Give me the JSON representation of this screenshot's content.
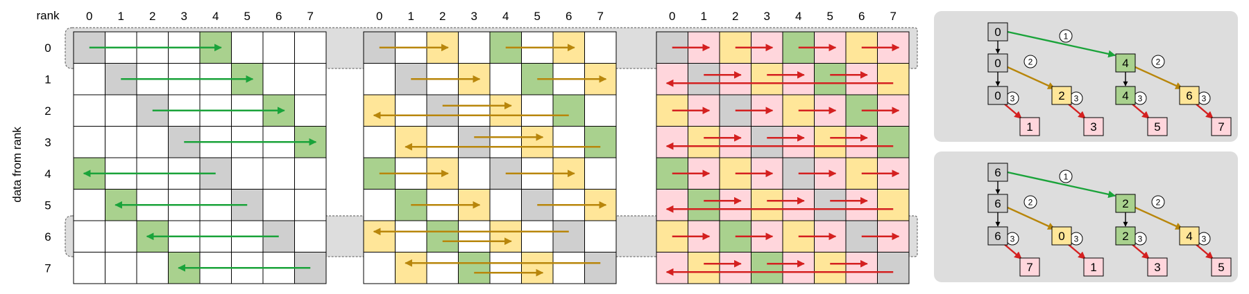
{
  "labels": {
    "rank": "rank",
    "y_axis": "data from rank",
    "col_ranks": [
      "0",
      "1",
      "2",
      "3",
      "4",
      "5",
      "6",
      "7"
    ],
    "row_ranks": [
      "0",
      "1",
      "2",
      "3",
      "4",
      "5",
      "6",
      "7"
    ]
  },
  "colors": {
    "gray": "#cfcfcf",
    "green": "#a9d18e",
    "yellow": "#ffe699",
    "pink": "#ffd6dc",
    "arrow_green": "#1aa33a",
    "arrow_orange": "#b8860b",
    "arrow_red": "#d42020",
    "panel": "#dddddd"
  },
  "grids": [
    {
      "name": "grid-step1",
      "cells": [
        "GWWWRWWW",
        "WGWWWRWW",
        "WWGWWWRW",
        "WWWGWWWR",
        "RWWWGWWW",
        "WRWWWGWW",
        "WWRWWWGW",
        "WWWRWWWG"
      ],
      "arrows": [
        {
          "row": 0,
          "from": 0,
          "to": 4,
          "c": "g"
        },
        {
          "row": 1,
          "from": 1,
          "to": 5,
          "c": "g"
        },
        {
          "row": 2,
          "from": 2,
          "to": 6,
          "c": "g"
        },
        {
          "row": 3,
          "from": 3,
          "to": 7,
          "c": "g"
        },
        {
          "row": 4,
          "from": 4,
          "to": 0,
          "c": "g"
        },
        {
          "row": 5,
          "from": 5,
          "to": 1,
          "c": "g"
        },
        {
          "row": 6,
          "from": 6,
          "to": 2,
          "c": "g"
        },
        {
          "row": 7,
          "from": 7,
          "to": 3,
          "c": "g"
        }
      ]
    },
    {
      "name": "grid-step2",
      "cells": [
        "GWYWRWYW",
        "WGWYWRWY",
        "YWGWYWRW",
        "WYWGWYWR",
        "RWYWGWYW",
        "WRWYWGWY",
        "YWRWYWGW",
        "WYWRWYWG"
      ],
      "arrows": [
        {
          "row": 0,
          "from": 0,
          "to": 2,
          "c": "o"
        },
        {
          "row": 0,
          "from": 4,
          "to": 6,
          "c": "o"
        },
        {
          "row": 1,
          "from": 1,
          "to": 3,
          "c": "o"
        },
        {
          "row": 1,
          "from": 5,
          "to": 7,
          "c": "o"
        },
        {
          "row": 2,
          "from": 2,
          "to": 4,
          "c": "o",
          "dy": -7
        },
        {
          "row": 2,
          "from": 6,
          "to": 0,
          "c": "o",
          "dy": 7
        },
        {
          "row": 3,
          "from": 3,
          "to": 5,
          "c": "o",
          "dy": -7
        },
        {
          "row": 3,
          "from": 7,
          "to": 1,
          "c": "o",
          "dy": 7
        },
        {
          "row": 4,
          "from": 4,
          "to": 6,
          "c": "o"
        },
        {
          "row": 4,
          "from": 0,
          "to": 2,
          "c": "o"
        },
        {
          "row": 5,
          "from": 5,
          "to": 7,
          "c": "o"
        },
        {
          "row": 5,
          "from": 1,
          "to": 3,
          "c": "o"
        },
        {
          "row": 6,
          "from": 6,
          "to": 0,
          "c": "o",
          "dy": -7
        },
        {
          "row": 6,
          "from": 2,
          "to": 4,
          "c": "o",
          "dy": 7
        },
        {
          "row": 7,
          "from": 7,
          "to": 1,
          "c": "o",
          "dy": -7
        },
        {
          "row": 7,
          "from": 3,
          "to": 5,
          "c": "o",
          "dy": 7
        }
      ]
    },
    {
      "name": "grid-step3",
      "cells": [
        "GPYPRPYP",
        "PGPYPRPY",
        "YPGPYPRP",
        "PYPGPYPR",
        "RPYPGPYP",
        "PRPYPGPY",
        "YPRPYPGP",
        "PYPRPYPG"
      ],
      "arrows": [
        {
          "row": 0,
          "from": 0,
          "to": 1,
          "c": "r"
        },
        {
          "row": 0,
          "from": 2,
          "to": 3,
          "c": "r"
        },
        {
          "row": 0,
          "from": 4,
          "to": 5,
          "c": "r"
        },
        {
          "row": 0,
          "from": 6,
          "to": 7,
          "c": "r"
        },
        {
          "row": 1,
          "from": 1,
          "to": 2,
          "c": "r",
          "dy": -6
        },
        {
          "row": 1,
          "from": 3,
          "to": 4,
          "c": "r",
          "dy": -6
        },
        {
          "row": 1,
          "from": 5,
          "to": 6,
          "c": "r",
          "dy": -6
        },
        {
          "row": 1,
          "from": 7,
          "to": 0,
          "c": "r",
          "dy": 6
        },
        {
          "row": 2,
          "from": 0,
          "to": 1,
          "c": "r"
        },
        {
          "row": 2,
          "from": 2,
          "to": 3,
          "c": "r"
        },
        {
          "row": 2,
          "from": 4,
          "to": 5,
          "c": "r"
        },
        {
          "row": 2,
          "from": 6,
          "to": 7,
          "c": "r"
        },
        {
          "row": 3,
          "from": 1,
          "to": 2,
          "c": "r",
          "dy": -6
        },
        {
          "row": 3,
          "from": 3,
          "to": 4,
          "c": "r",
          "dy": -6
        },
        {
          "row": 3,
          "from": 5,
          "to": 6,
          "c": "r",
          "dy": -6
        },
        {
          "row": 3,
          "from": 7,
          "to": 0,
          "c": "r",
          "dy": 6
        },
        {
          "row": 4,
          "from": 0,
          "to": 1,
          "c": "r"
        },
        {
          "row": 4,
          "from": 2,
          "to": 3,
          "c": "r"
        },
        {
          "row": 4,
          "from": 4,
          "to": 5,
          "c": "r"
        },
        {
          "row": 4,
          "from": 6,
          "to": 7,
          "c": "r"
        },
        {
          "row": 5,
          "from": 1,
          "to": 2,
          "c": "r",
          "dy": -6
        },
        {
          "row": 5,
          "from": 3,
          "to": 4,
          "c": "r",
          "dy": -6
        },
        {
          "row": 5,
          "from": 5,
          "to": 6,
          "c": "r",
          "dy": -6
        },
        {
          "row": 5,
          "from": 7,
          "to": 0,
          "c": "r",
          "dy": 6
        },
        {
          "row": 6,
          "from": 0,
          "to": 1,
          "c": "r"
        },
        {
          "row": 6,
          "from": 2,
          "to": 3,
          "c": "r"
        },
        {
          "row": 6,
          "from": 4,
          "to": 5,
          "c": "r"
        },
        {
          "row": 6,
          "from": 6,
          "to": 7,
          "c": "r"
        },
        {
          "row": 7,
          "from": 1,
          "to": 2,
          "c": "r",
          "dy": -6
        },
        {
          "row": 7,
          "from": 3,
          "to": 4,
          "c": "r",
          "dy": -6
        },
        {
          "row": 7,
          "from": 5,
          "to": 6,
          "c": "r",
          "dy": -6
        },
        {
          "row": 7,
          "from": 7,
          "to": 0,
          "c": "r",
          "dy": 6
        }
      ]
    }
  ],
  "trees": [
    {
      "name": "tree-rank0",
      "nodes": [
        {
          "id": "a",
          "label": "0",
          "fill": "G",
          "col": 0,
          "lvl": 0
        },
        {
          "id": "b",
          "label": "0",
          "fill": "G",
          "col": 0,
          "lvl": 1
        },
        {
          "id": "c",
          "label": "0",
          "fill": "G",
          "col": 0,
          "lvl": 2
        },
        {
          "id": "d",
          "label": "1",
          "fill": "P",
          "col": 1,
          "lvl": 3
        },
        {
          "id": "e",
          "label": "2",
          "fill": "Y",
          "col": 2,
          "lvl": 2
        },
        {
          "id": "f",
          "label": "3",
          "fill": "P",
          "col": 3,
          "lvl": 3
        },
        {
          "id": "g",
          "label": "4",
          "fill": "R",
          "col": 4,
          "lvl": 1
        },
        {
          "id": "h",
          "label": "4",
          "fill": "R",
          "col": 4,
          "lvl": 2
        },
        {
          "id": "i",
          "label": "5",
          "fill": "P",
          "col": 5,
          "lvl": 3
        },
        {
          "id": "j",
          "label": "6",
          "fill": "Y",
          "col": 6,
          "lvl": 2
        },
        {
          "id": "k",
          "label": "7",
          "fill": "P",
          "col": 7,
          "lvl": 3
        }
      ],
      "edges": [
        {
          "from": "a",
          "to": "b",
          "type": "down"
        },
        {
          "from": "b",
          "to": "c",
          "type": "down"
        },
        {
          "from": "g",
          "to": "h",
          "type": "down"
        },
        {
          "from": "a",
          "to": "g",
          "type": "g",
          "step": "1"
        },
        {
          "from": "b",
          "to": "e",
          "type": "o",
          "step": "2"
        },
        {
          "from": "g",
          "to": "j",
          "type": "o",
          "step": "2"
        },
        {
          "from": "c",
          "to": "d",
          "type": "r",
          "step": "3"
        },
        {
          "from": "e",
          "to": "f",
          "type": "r",
          "step": "3"
        },
        {
          "from": "h",
          "to": "i",
          "type": "r",
          "step": "3"
        },
        {
          "from": "j",
          "to": "k",
          "type": "r",
          "step": "3"
        }
      ]
    },
    {
      "name": "tree-rank6",
      "nodes": [
        {
          "id": "a",
          "label": "6",
          "fill": "G",
          "col": 0,
          "lvl": 0
        },
        {
          "id": "b",
          "label": "6",
          "fill": "G",
          "col": 0,
          "lvl": 1
        },
        {
          "id": "c",
          "label": "6",
          "fill": "G",
          "col": 0,
          "lvl": 2
        },
        {
          "id": "d",
          "label": "7",
          "fill": "P",
          "col": 1,
          "lvl": 3
        },
        {
          "id": "e",
          "label": "0",
          "fill": "Y",
          "col": 2,
          "lvl": 2
        },
        {
          "id": "f",
          "label": "1",
          "fill": "P",
          "col": 3,
          "lvl": 3
        },
        {
          "id": "g",
          "label": "2",
          "fill": "R",
          "col": 4,
          "lvl": 1
        },
        {
          "id": "h",
          "label": "2",
          "fill": "R",
          "col": 4,
          "lvl": 2
        },
        {
          "id": "i",
          "label": "3",
          "fill": "P",
          "col": 5,
          "lvl": 3
        },
        {
          "id": "j",
          "label": "4",
          "fill": "Y",
          "col": 6,
          "lvl": 2
        },
        {
          "id": "k",
          "label": "5",
          "fill": "P",
          "col": 7,
          "lvl": 3
        }
      ],
      "edges": [
        {
          "from": "a",
          "to": "b",
          "type": "down"
        },
        {
          "from": "b",
          "to": "c",
          "type": "down"
        },
        {
          "from": "g",
          "to": "h",
          "type": "down"
        },
        {
          "from": "a",
          "to": "g",
          "type": "g",
          "step": "1"
        },
        {
          "from": "b",
          "to": "e",
          "type": "o",
          "step": "2"
        },
        {
          "from": "g",
          "to": "j",
          "type": "o",
          "step": "2"
        },
        {
          "from": "c",
          "to": "d",
          "type": "r",
          "step": "3"
        },
        {
          "from": "e",
          "to": "f",
          "type": "r",
          "step": "3"
        },
        {
          "from": "h",
          "to": "i",
          "type": "r",
          "step": "3"
        },
        {
          "from": "j",
          "to": "k",
          "type": "r",
          "step": "3"
        }
      ]
    }
  ]
}
